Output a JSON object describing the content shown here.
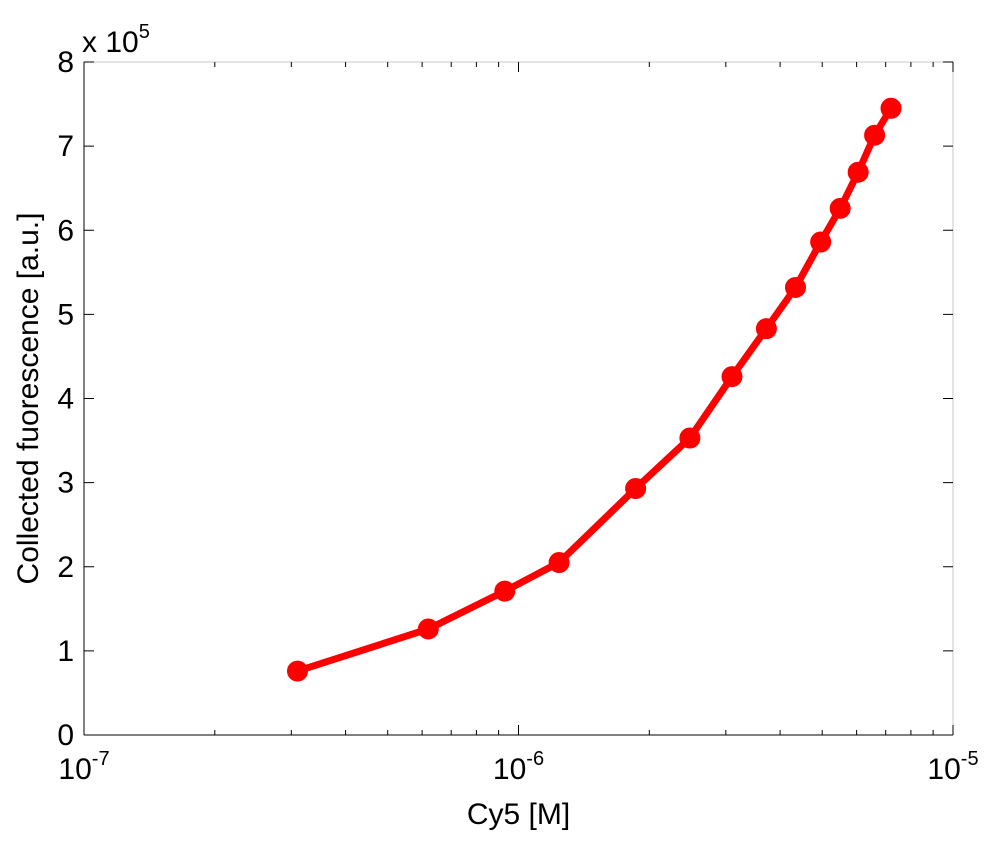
{
  "chart_data": {
    "type": "line",
    "title": "",
    "xlabel": "Cy5 [M]",
    "ylabel": "Collected fuorescence [a.u.]",
    "x_scale": "log",
    "xlim": [
      1e-07,
      1e-05
    ],
    "ylim": [
      0,
      800000
    ],
    "y_multiplier_label": {
      "prefix": "x 10",
      "exponent": "5"
    },
    "x_ticks": [
      {
        "value": 1e-07,
        "base": "10",
        "exponent": "-7"
      },
      {
        "value": 1e-06,
        "base": "10",
        "exponent": "-6"
      },
      {
        "value": 1e-05,
        "base": "10",
        "exponent": "-5"
      }
    ],
    "y_ticks": [
      {
        "value": 0,
        "label": "0"
      },
      {
        "value": 100000,
        "label": "1"
      },
      {
        "value": 200000,
        "label": "2"
      },
      {
        "value": 300000,
        "label": "3"
      },
      {
        "value": 400000,
        "label": "4"
      },
      {
        "value": 500000,
        "label": "5"
      },
      {
        "value": 600000,
        "label": "6"
      },
      {
        "value": 700000,
        "label": "7"
      },
      {
        "value": 800000,
        "label": "8"
      }
    ],
    "grid": false,
    "series": [
      {
        "color": "#ff0000",
        "marker": "circle",
        "x": [
          3.1e-07,
          6.2e-07,
          9.3e-07,
          1.24e-06,
          1.86e-06,
          2.48e-06,
          3.1e-06,
          3.72e-06,
          4.34e-06,
          4.96e-06,
          5.5e-06,
          6.05e-06,
          6.6e-06,
          7.2e-06
        ],
        "y": [
          76000,
          126000,
          171000,
          205000,
          293000,
          353000,
          426000,
          483000,
          532000,
          586000,
          626000,
          669000,
          713000,
          745000
        ]
      }
    ]
  }
}
